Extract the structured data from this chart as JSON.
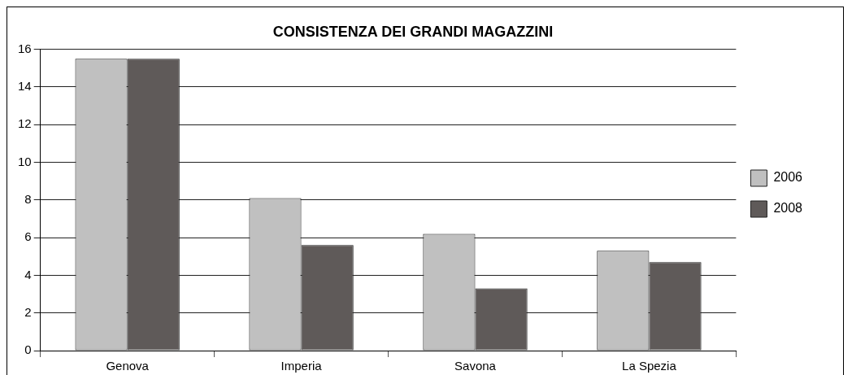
{
  "chart_data": {
    "type": "bar",
    "title": "CONSISTENZA DEI GRANDI MAGAZZINI",
    "categories": [
      "Genova",
      "Imperia",
      "Savona",
      "La Spezia"
    ],
    "series": [
      {
        "name": "2006",
        "color": "#c0c0c0",
        "values": [
          15.5,
          8.1,
          6.2,
          5.3
        ]
      },
      {
        "name": "2008",
        "color": "#5f5a59",
        "values": [
          15.5,
          5.6,
          3.3,
          4.7
        ]
      }
    ],
    "ylim": [
      0,
      16
    ],
    "yticks": [
      0,
      2,
      4,
      6,
      8,
      10,
      12,
      14,
      16
    ],
    "grid": "y",
    "legend": "right"
  }
}
